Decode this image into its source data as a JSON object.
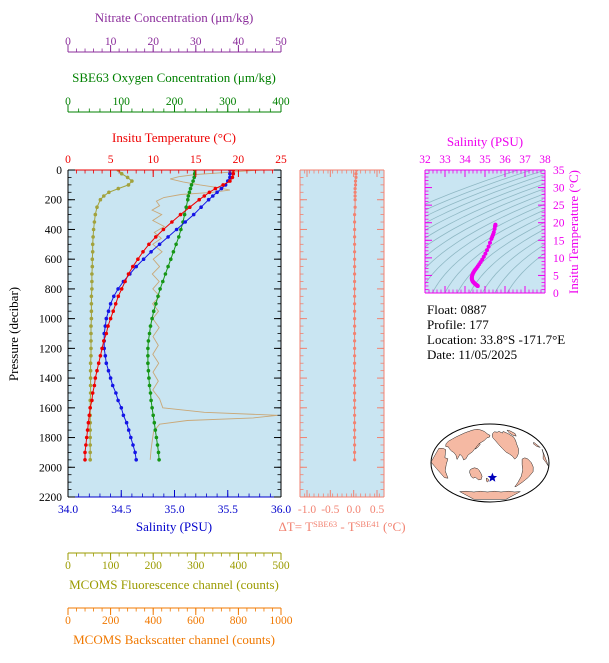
{
  "figure": {
    "bg": "#ffffff",
    "panel_bg": "#c9e5f2"
  },
  "axes": {
    "nitrate": {
      "title": "Nitrate Concentration (μm/kg)",
      "color": "#8b2d9b",
      "range": [
        0,
        50
      ],
      "ticks": [
        "0",
        "10",
        "20",
        "30",
        "40",
        "50"
      ],
      "minor_step": 2
    },
    "oxygen": {
      "title": "SBE63 Oxygen Concentration (μm/kg)",
      "color": "#008000",
      "range": [
        0,
        400
      ],
      "ticks": [
        "0",
        "100",
        "200",
        "300",
        "400"
      ],
      "minor_step": 20
    },
    "temperature": {
      "title": "Insitu Temperature (°C)",
      "color": "#ee0000",
      "range": [
        0,
        25
      ],
      "ticks": [
        "0",
        "5",
        "10",
        "15",
        "20",
        "25"
      ],
      "minor_step": 1
    },
    "pressure": {
      "title": "Pressure (decibar)",
      "color": "#000000",
      "range": [
        0,
        2200
      ],
      "ticks": [
        "0",
        "200",
        "400",
        "600",
        "800",
        "1000",
        "1200",
        "1400",
        "1600",
        "1800",
        "2000",
        "2200"
      ],
      "minor_step": 50
    },
    "salinity": {
      "title": "Salinity (PSU)",
      "color": "#0000cc",
      "range": [
        34.0,
        36.0
      ],
      "ticks": [
        "34.0",
        "34.5",
        "35.0",
        "35.5",
        "36.0"
      ],
      "minor_step": 0.1
    },
    "delta_t": {
      "t1": "ΔT= T",
      "sup1": "SBE63",
      "t2": " - T",
      "sup2": "SBE41",
      "t3": " (°C)",
      "color": "#f28271",
      "range": [
        -1.15,
        0.65
      ],
      "ticks": [
        "-1.0",
        "-0.5",
        "0.0",
        "0.5"
      ],
      "minor_step": 0.1
    },
    "ts_salinity": {
      "title": "Salinity (PSU)",
      "color": "#ee00ee",
      "range": [
        32,
        38
      ],
      "ticks": [
        "32",
        "33",
        "34",
        "35",
        "36",
        "37",
        "38"
      ],
      "minor_step": 0.2
    },
    "ts_temperature": {
      "title": "Insitu Temperature (°C)",
      "color": "#ee00ee",
      "range": [
        0,
        35
      ],
      "ticks": [
        "0",
        "5",
        "10",
        "15",
        "20",
        "25",
        "30",
        "35"
      ],
      "minor_step": 1
    },
    "fluorescence": {
      "title": "MCOMS Fluorescence channel (counts)",
      "color": "#9b9b00",
      "range": [
        0,
        500
      ],
      "ticks": [
        "0",
        "100",
        "200",
        "300",
        "400",
        "500"
      ],
      "minor_step": 20
    },
    "backscatter": {
      "title": "MCOMS Backscatter channel (counts)",
      "color": "#f07800",
      "range": [
        0,
        1000
      ],
      "ticks": [
        "0",
        "200",
        "400",
        "600",
        "800",
        "1000"
      ],
      "minor_step": 40
    }
  },
  "info": {
    "float": "Float:  0887",
    "profile": "Profile:  177",
    "location": "Location:  33.8°S -171.7°E",
    "date": "Date:  11/05/2025"
  },
  "chart_data": {
    "type": "line",
    "title": "Argo float 0887 profile 177 — vertical profiles vs pressure",
    "pressure_db": [
      0,
      25,
      50,
      75,
      100,
      125,
      150,
      175,
      200,
      250,
      300,
      350,
      400,
      450,
      500,
      550,
      600,
      650,
      700,
      750,
      800,
      850,
      900,
      950,
      1000,
      1050,
      1100,
      1150,
      1200,
      1250,
      1300,
      1350,
      1400,
      1450,
      1500,
      1550,
      1600,
      1650,
      1700,
      1750,
      1800,
      1850,
      1900,
      1950
    ],
    "series": [
      {
        "name": "Insitu Temperature",
        "units": "°C",
        "color": "#ee0000",
        "marker": "dot",
        "x_range": [
          0,
          25
        ],
        "values": [
          19.4,
          19.4,
          19.3,
          19.0,
          18.2,
          17.3,
          16.6,
          16.0,
          15.4,
          14.3,
          13.2,
          12.2,
          11.2,
          10.3,
          9.5,
          8.8,
          8.2,
          7.6,
          7.1,
          6.7,
          6.3,
          5.9,
          5.6,
          5.3,
          5.0,
          4.7,
          4.5,
          4.2,
          4.0,
          3.8,
          3.6,
          3.4,
          3.2,
          3.1,
          2.9,
          2.8,
          2.6,
          2.5,
          2.4,
          2.3,
          2.2,
          2.1,
          2.0,
          2.0
        ]
      },
      {
        "name": "Salinity",
        "units": "PSU",
        "color": "#1414e6",
        "marker": "dot",
        "x_range": [
          34.0,
          36.0
        ],
        "values": [
          35.52,
          35.52,
          35.52,
          35.5,
          35.48,
          35.44,
          35.4,
          35.36,
          35.32,
          35.25,
          35.18,
          35.1,
          35.02,
          34.94,
          34.86,
          34.78,
          34.71,
          34.64,
          34.58,
          34.52,
          34.47,
          34.43,
          34.4,
          34.38,
          34.36,
          34.35,
          34.34,
          34.34,
          34.34,
          34.35,
          34.36,
          34.38,
          34.4,
          34.42,
          34.45,
          34.47,
          34.5,
          34.52,
          34.55,
          34.57,
          34.59,
          34.61,
          34.63,
          34.64
        ]
      },
      {
        "name": "SBE63 Oxygen Concentration",
        "units": "μm/kg",
        "color": "#169616",
        "marker": "dot",
        "x_range": [
          0,
          400
        ],
        "values": [
          238,
          238,
          237,
          235,
          232,
          230,
          228,
          226,
          225,
          222,
          219,
          216,
          212,
          208,
          203,
          198,
          193,
          188,
          183,
          178,
          173,
          169,
          165,
          161,
          158,
          155,
          153,
          151,
          150,
          150,
          150,
          151,
          152,
          153,
          155,
          156,
          158,
          160,
          162,
          164,
          166,
          168,
          170,
          171
        ]
      },
      {
        "name": "MCOMS Fluorescence channel",
        "units": "counts",
        "color": "#a2a23c",
        "marker": "dot",
        "x_range": [
          0,
          500
        ],
        "values": [
          118,
          126,
          140,
          150,
          142,
          118,
          96,
          84,
          76,
          68,
          64,
          62,
          60,
          59,
          58,
          58,
          57,
          57,
          56,
          56,
          56,
          55,
          55,
          55,
          55,
          54,
          54,
          54,
          54,
          54,
          53,
          53,
          53,
          53,
          53,
          52,
          52,
          52,
          52,
          52,
          52,
          52,
          52,
          52
        ]
      }
    ],
    "backscatter_series": {
      "name": "MCOMS Backscatter channel",
      "units": "counts",
      "color": "#c9a878",
      "x_range": [
        0,
        1000
      ],
      "points": [
        [
          0,
          900
        ],
        [
          15,
          760
        ],
        [
          30,
          600
        ],
        [
          45,
          520
        ],
        [
          60,
          480
        ],
        [
          80,
          540
        ],
        [
          100,
          620
        ],
        [
          120,
          710
        ],
        [
          135,
          760
        ],
        [
          150,
          680
        ],
        [
          165,
          530
        ],
        [
          185,
          450
        ],
        [
          210,
          415
        ],
        [
          240,
          430
        ],
        [
          270,
          395
        ],
        [
          300,
          440
        ],
        [
          340,
          398
        ],
        [
          380,
          452
        ],
        [
          420,
          405
        ],
        [
          460,
          438
        ],
        [
          500,
          398
        ],
        [
          550,
          442
        ],
        [
          600,
          400
        ],
        [
          650,
          430
        ],
        [
          700,
          396
        ],
        [
          750,
          428
        ],
        [
          800,
          398
        ],
        [
          850,
          432
        ],
        [
          900,
          397
        ],
        [
          950,
          425
        ],
        [
          1000,
          398
        ],
        [
          1060,
          428
        ],
        [
          1120,
          399
        ],
        [
          1180,
          424
        ],
        [
          1240,
          398
        ],
        [
          1300,
          426
        ],
        [
          1360,
          399
        ],
        [
          1420,
          424
        ],
        [
          1480,
          398
        ],
        [
          1540,
          430
        ],
        [
          1600,
          445
        ],
        [
          1630,
          640
        ],
        [
          1650,
          985
        ],
        [
          1668,
          870
        ],
        [
          1685,
          560
        ],
        [
          1710,
          430
        ],
        [
          1760,
          402
        ],
        [
          1820,
          396
        ],
        [
          1880,
          390
        ],
        [
          1950,
          386
        ]
      ]
    },
    "delta_t_series": {
      "name": "ΔT = T_SBE63 - T_SBE41",
      "units": "°C",
      "color": "#f28271",
      "marker": "dot",
      "x_range": [
        -1.15,
        0.65
      ],
      "values": [
        0.06,
        0.05,
        0.05,
        0.04,
        0.04,
        0.03,
        0.03,
        0.03,
        0.03,
        0.03,
        0.02,
        0.02,
        0.02,
        0.02,
        0.02,
        0.02,
        0.02,
        0.02,
        0.02,
        0.02,
        0.02,
        0.02,
        0.02,
        0.02,
        0.02,
        0.02,
        0.02,
        0.02,
        0.02,
        0.02,
        0.02,
        0.02,
        0.02,
        0.02,
        0.02,
        0.02,
        0.02,
        0.02,
        0.02,
        0.02,
        0.02,
        0.02,
        0.02,
        0.02
      ]
    },
    "ts_diagram": {
      "salinity_range": [
        32,
        38
      ],
      "temperature_range": [
        0,
        35
      ],
      "sigma_theta_levels": [
        21,
        21.5,
        22,
        22.5,
        23,
        23.5,
        24,
        24.5,
        25,
        25.5,
        26,
        26.5,
        27,
        27.5,
        28,
        28.5,
        29
      ],
      "curve_color": "#ee00ee",
      "contour_color": "#8fb8c4"
    },
    "map": {
      "star_lon": -171.7,
      "star_lat": -33.8,
      "land_color": "#f5b9a3",
      "ocean_color": "#ffffff",
      "star_color": "#0000bb"
    }
  }
}
